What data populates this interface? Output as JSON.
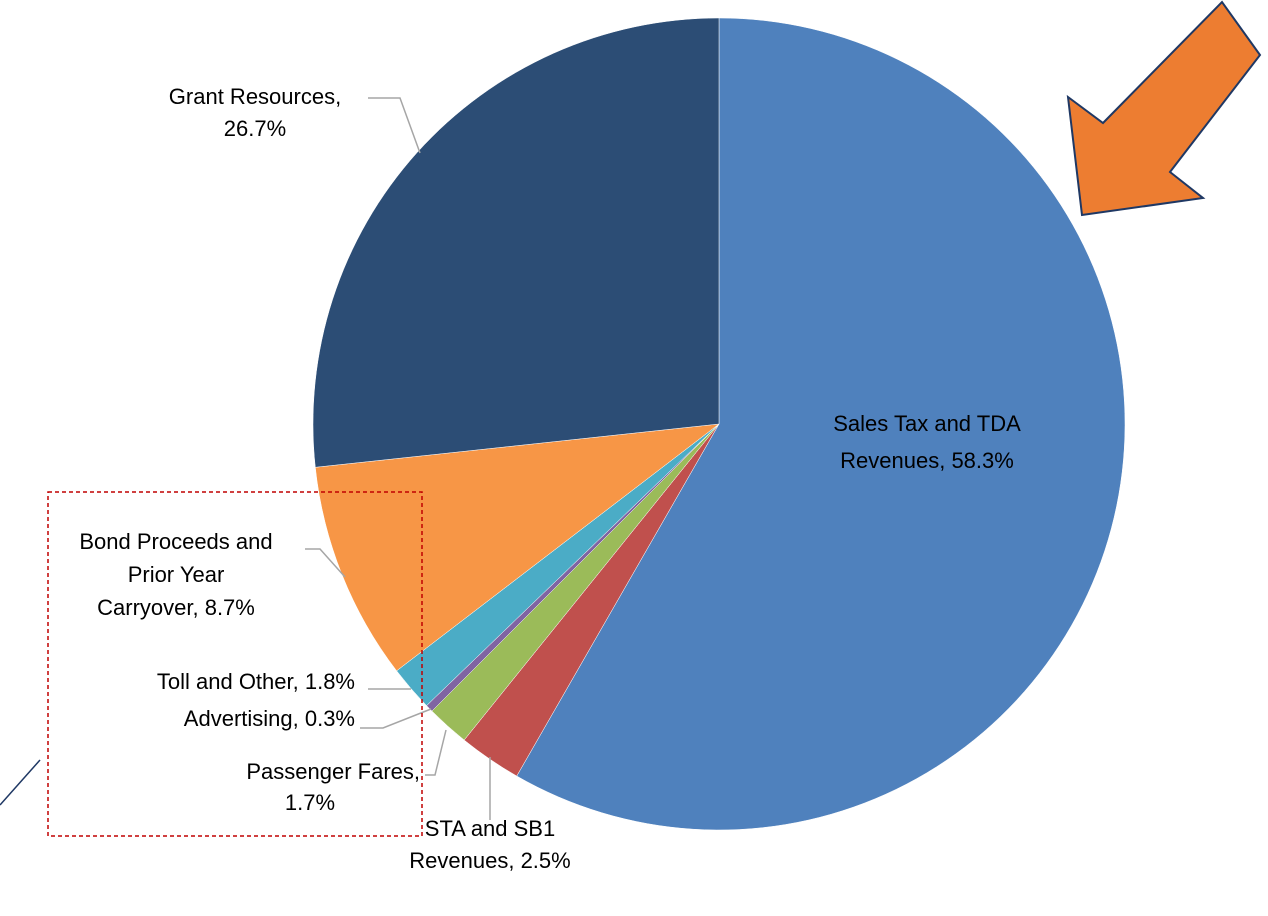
{
  "chart_data": {
    "type": "pie",
    "values": [
      58.3,
      2.5,
      1.7,
      0.3,
      1.8,
      8.7,
      26.7
    ],
    "value_labels": [
      [
        "Sales Tax and TDA",
        "Revenues, 58.3%"
      ],
      [
        "STA and SB1",
        "Revenues, 2.5%"
      ],
      [
        "Passenger Fares,",
        "1.7%"
      ],
      [
        "Advertising, 0.3%"
      ],
      [
        "Toll and Other, 1.8%"
      ],
      [
        "Bond Proceeds and",
        "Prior Year",
        "Carryover, 8.7%"
      ],
      [
        "Grant Resources,",
        "26.7%"
      ]
    ],
    "colors": [
      "#4f81bd",
      "#c0504d",
      "#9bbb59",
      "#8064a2",
      "#4bacc6",
      "#f79646",
      "#2c4d75"
    ]
  }
}
